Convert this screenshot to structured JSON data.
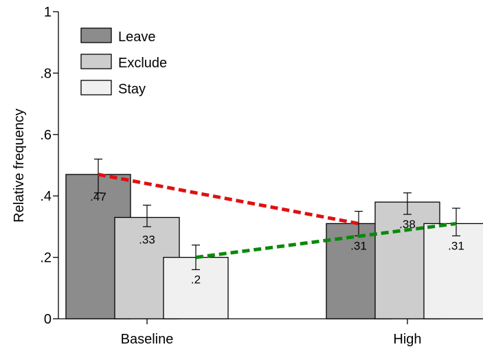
{
  "chart_data": {
    "type": "bar",
    "title": "",
    "xlabel": "",
    "ylabel": "Relative frequency",
    "ylim": [
      0,
      1
    ],
    "yticks": [
      {
        "value": 0,
        "label": "0"
      },
      {
        "value": 0.2,
        "label": ".2"
      },
      {
        "value": 0.4,
        "label": ".4"
      },
      {
        "value": 0.6,
        "label": ".6"
      },
      {
        "value": 0.8,
        "label": ".8"
      },
      {
        "value": 1,
        "label": "1"
      }
    ],
    "categories": [
      "Baseline",
      "High"
    ],
    "series": [
      {
        "name": "Leave",
        "color": "#8c8c8c",
        "values": [
          0.47,
          0.31
        ],
        "labels": [
          ".47",
          ".31"
        ],
        "err_low": [
          0.41,
          0.27
        ],
        "err_high": [
          0.52,
          0.35
        ]
      },
      {
        "name": "Exclude",
        "color": "#cdcdcd",
        "values": [
          0.33,
          0.38
        ],
        "labels": [
          ".33",
          ".38"
        ],
        "err_low": [
          0.3,
          0.34
        ],
        "err_high": [
          0.37,
          0.41
        ]
      },
      {
        "name": "Stay",
        "color": "#f0f0f0",
        "values": [
          0.2,
          0.31
        ],
        "labels": [
          ".2",
          ".31"
        ],
        "err_low": [
          0.16,
          0.27
        ],
        "err_high": [
          0.24,
          0.36
        ]
      }
    ],
    "trend_lines": [
      {
        "series": "Leave",
        "color": "#e01010",
        "style": "dashed",
        "from": 0.47,
        "to": 0.31
      },
      {
        "series": "Stay",
        "color": "#0a8a0a",
        "style": "dashed",
        "from": 0.2,
        "to": 0.31
      }
    ],
    "legend": {
      "position": "top-left"
    },
    "grid": false
  }
}
